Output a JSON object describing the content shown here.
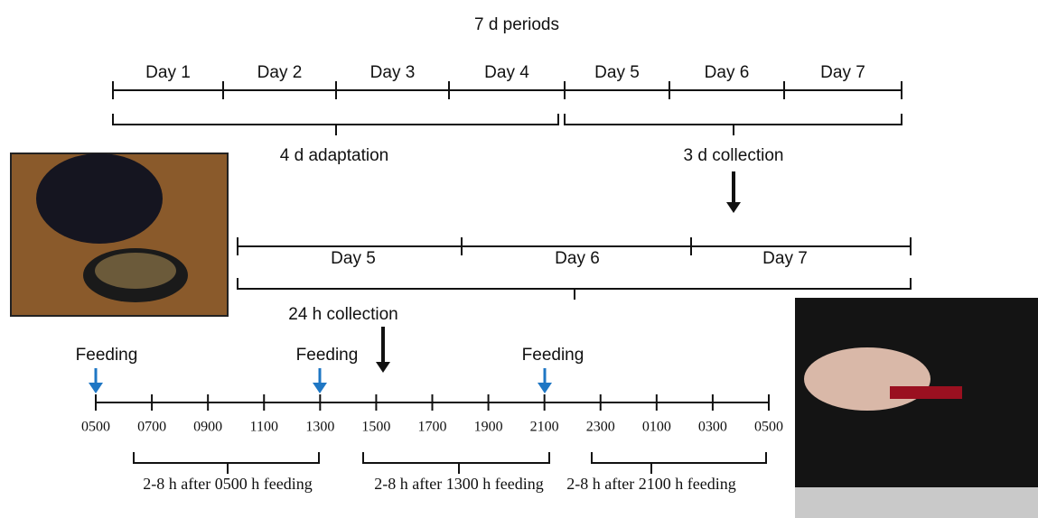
{
  "title": "7 d periods",
  "period_timeline": {
    "days": [
      "Day 1",
      "Day 2",
      "Day 3",
      "Day 4",
      "Day 5",
      "Day 6",
      "Day 7"
    ],
    "adaptation": "4 d adaptation",
    "collection": "3 d collection"
  },
  "collection_timeline": {
    "days": [
      "Day 5",
      "Day 6",
      "Day 7"
    ],
    "label": "24 h collection"
  },
  "feeding_timeline": {
    "feedings": [
      "Feeding",
      "Feeding",
      "Feeding"
    ],
    "times": [
      "0500",
      "0700",
      "0900",
      "1100",
      "1300",
      "1500",
      "1700",
      "1900",
      "2100",
      "2300",
      "0100",
      "0300",
      "0500"
    ],
    "windows": [
      "2-8 h after 0500 h feeding",
      "2-8 h after 1300 h feeding",
      "2-8 h after 2100 h feeding"
    ]
  }
}
